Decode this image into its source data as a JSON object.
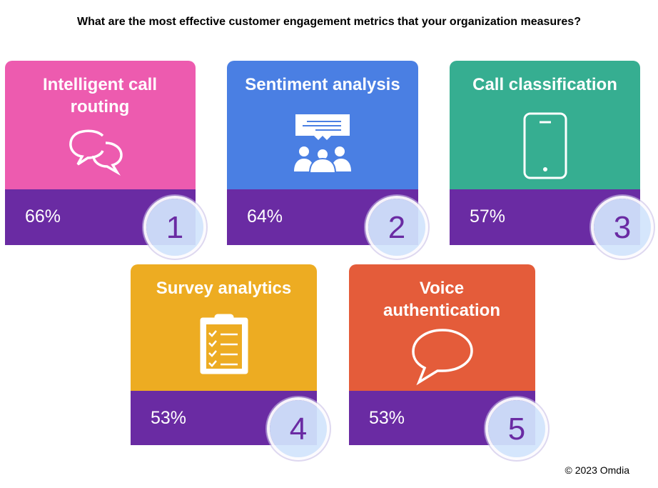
{
  "title": "What are the most effective customer engagement metrics that your organization measures?",
  "cards": [
    {
      "label": "Intelligent call routing",
      "pct": "66%",
      "rank": "1",
      "color": "#ED5BAF",
      "icon": "chat-bubbles-icon"
    },
    {
      "label": "Sentiment analysis",
      "pct": "64%",
      "rank": "2",
      "color": "#4A7FE3",
      "icon": "group-discussion-icon"
    },
    {
      "label": "Call classification",
      "pct": "57%",
      "rank": "3",
      "color": "#36AE91",
      "icon": "mobile-phone-icon"
    },
    {
      "label": "Survey analytics",
      "pct": "53%",
      "rank": "4",
      "color": "#EDAC22",
      "icon": "clipboard-checklist-icon"
    },
    {
      "label": "Voice authentication",
      "pct": "53%",
      "rank": "5",
      "color": "#E45C3A",
      "icon": "speech-bubble-icon"
    }
  ],
  "copyright": "© 2023 Omdia"
}
